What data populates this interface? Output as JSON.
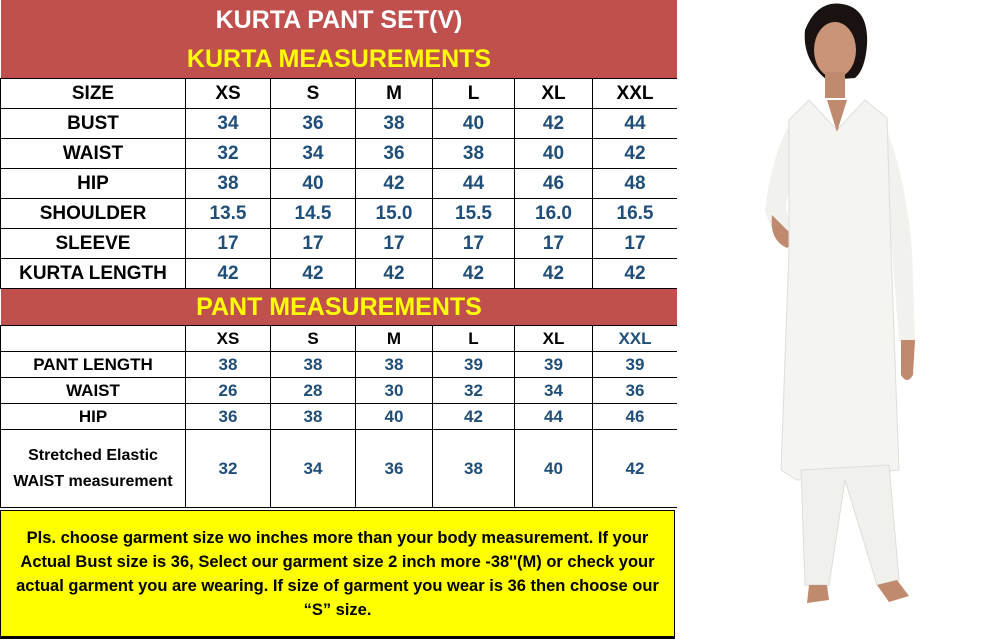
{
  "title": "KURTA PANT SET(V)",
  "kurta": {
    "heading": "KURTA MEASUREMENTS",
    "size_label": "SIZE",
    "sizes": [
      "XS",
      "S",
      "M",
      "L",
      "XL",
      "XXL"
    ],
    "rows": [
      {
        "label": "BUST",
        "values": [
          "34",
          "36",
          "38",
          "40",
          "42",
          "44"
        ]
      },
      {
        "label": "WAIST",
        "values": [
          "32",
          "34",
          "36",
          "38",
          "40",
          "42"
        ]
      },
      {
        "label": "HIP",
        "values": [
          "38",
          "40",
          "42",
          "44",
          "46",
          "48"
        ]
      },
      {
        "label": "SHOULDER",
        "values": [
          "13.5",
          "14.5",
          "15.0",
          "15.5",
          "16.0",
          "16.5"
        ]
      },
      {
        "label": "SLEEVE",
        "values": [
          "17",
          "17",
          "17",
          "17",
          "17",
          "17"
        ]
      },
      {
        "label": "KURTA LENGTH",
        "values": [
          "42",
          "42",
          "42",
          "42",
          "42",
          "42"
        ]
      }
    ]
  },
  "pant": {
    "heading": "PANT MEASUREMENTS",
    "sizes": [
      "XS",
      "S",
      "M",
      "L",
      "XL",
      "XXL"
    ],
    "rows": [
      {
        "label": "PANT LENGTH",
        "values": [
          "38",
          "38",
          "38",
          "39",
          "39",
          "39"
        ]
      },
      {
        "label": "WAIST",
        "values": [
          "26",
          "28",
          "30",
          "32",
          "34",
          "36"
        ]
      },
      {
        "label": "HIP",
        "values": [
          "36",
          "38",
          "40",
          "42",
          "44",
          "46"
        ]
      },
      {
        "label": "Stretched Elastic WAIST measurement",
        "values": [
          "32",
          "34",
          "36",
          "38",
          "40",
          "42"
        ]
      }
    ]
  },
  "note": "Pls. choose garment size wo inches more than your body measurement. If your Actual Bust size is 36, Select our garment size 2 inch more -38''(M) or check your actual garment you are wearing. If size of garment you wear is 36 then choose our “S” size.",
  "colors": {
    "banner": "#c0504d",
    "heading_yellow": "#ffff00",
    "value_blue": "#1f4e79",
    "note_bg": "#ffff00"
  }
}
